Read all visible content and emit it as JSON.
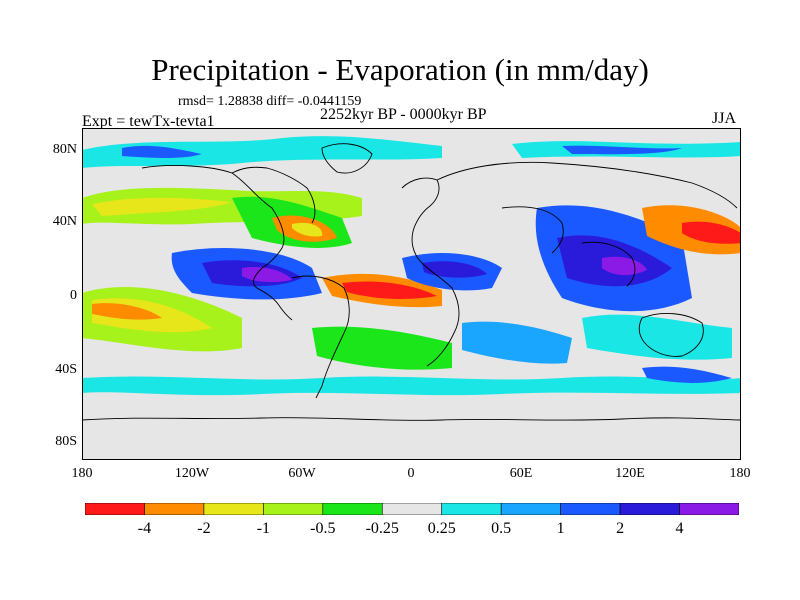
{
  "title": "Precipitation - Evaporation (in mm/day)",
  "stats_line": "rmsd= 1.28838 diff= -0.0441159",
  "period": "2252kyr BP - 0000kyr BP",
  "experiment": "Expt = tewTx-tevta1",
  "season": "JJA",
  "axes": {
    "lat_ticks": [
      "80N",
      "40N",
      "0",
      "40S",
      "80S"
    ],
    "lon_ticks": [
      "180",
      "120W",
      "60W",
      "0",
      "60E",
      "120E",
      "180"
    ]
  },
  "colorbar": {
    "labels": [
      "-4",
      "-2",
      "-1",
      "-0.5",
      "-0.25",
      "0.25",
      "0.5",
      "1",
      "2",
      "4"
    ],
    "colors": [
      "#ff1a1a",
      "#ff8c00",
      "#e6e61a",
      "#a6f21a",
      "#1ae61a",
      "#e6e6e6",
      "#1ae6e6",
      "#1aa6ff",
      "#1a59ff",
      "#2a1ad9",
      "#8c1ae6"
    ]
  },
  "map_palette": {
    "land_outline": "#000000",
    "background": "#e6e6e6"
  }
}
